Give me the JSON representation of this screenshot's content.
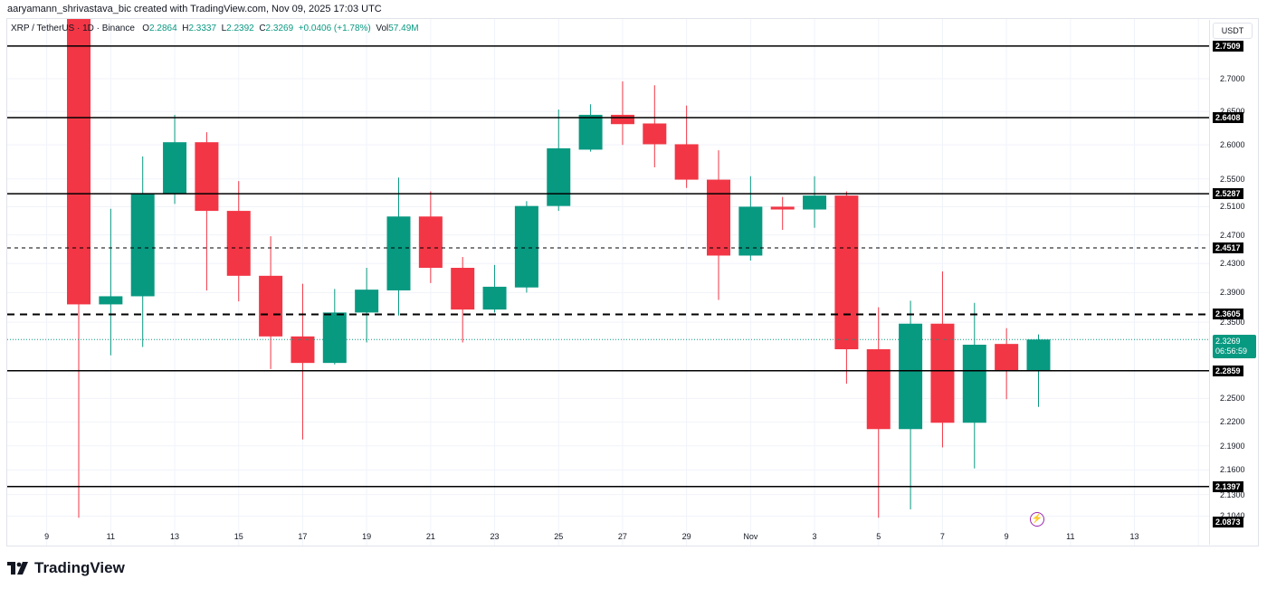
{
  "attribution": "aaryamann_shrivastava_bic created with TradingView.com, Nov 09, 2025 17:03 UTC",
  "legend": {
    "symbol": "XRP / TetherUS · 1D · Binance",
    "o_label": "O",
    "o": "2.2864",
    "h_label": "H",
    "h": "2.3337",
    "l_label": "L",
    "l": "2.2392",
    "c_label": "C",
    "c": "2.3269",
    "change": "+0.0406 (+1.78%)",
    "vol_label": "Vol",
    "vol": "57.49M"
  },
  "axis": {
    "unit": "USDT",
    "last_price": "2.3269",
    "countdown": "06:56:59"
  },
  "logo_text": "TradingView",
  "colors": {
    "up": "#089981",
    "down": "#f23645",
    "line": "#000000",
    "grid": "#f0f3fa"
  },
  "chart_data": {
    "type": "candlestick",
    "title": "XRP / TetherUS · 1D · Binance",
    "ylabel": "USDT",
    "scale": "log",
    "ylim": [
      2.09,
      2.77
    ],
    "y_ticks": [
      2.7,
      2.65,
      2.6,
      2.55,
      2.51,
      2.47,
      2.43,
      2.39,
      2.35,
      2.25,
      2.22,
      2.19,
      2.16,
      2.13,
      2.104
    ],
    "x_ticks": [
      "9",
      "11",
      "13",
      "15",
      "17",
      "19",
      "21",
      "23",
      "25",
      "27",
      "29",
      "Nov",
      "3",
      "5",
      "7",
      "9",
      "11",
      "13"
    ],
    "horizontal_lines": [
      {
        "price": 2.7509,
        "style": "solid"
      },
      {
        "price": 2.6408,
        "style": "solid"
      },
      {
        "price": 2.5287,
        "style": "solid"
      },
      {
        "price": 2.4517,
        "style": "dashed-fine"
      },
      {
        "price": 2.3605,
        "style": "dashed-bold"
      },
      {
        "price": 2.2859,
        "style": "solid"
      },
      {
        "price": 2.1397,
        "style": "solid"
      },
      {
        "price": 2.0873,
        "style": "label-only"
      }
    ],
    "candles": [
      {
        "date": "Oct 10",
        "o": 2.8,
        "h": 2.8,
        "l": 2.102,
        "c": 2.374
      },
      {
        "date": "Oct 11",
        "o": 2.374,
        "h": 2.507,
        "l": 2.306,
        "c": 2.385
      },
      {
        "date": "Oct 12",
        "o": 2.385,
        "h": 2.583,
        "l": 2.317,
        "c": 2.529
      },
      {
        "date": "Oct 13",
        "o": 2.529,
        "h": 2.645,
        "l": 2.514,
        "c": 2.604
      },
      {
        "date": "Oct 14",
        "o": 2.604,
        "h": 2.619,
        "l": 2.393,
        "c": 2.504
      },
      {
        "date": "Oct 15",
        "o": 2.504,
        "h": 2.547,
        "l": 2.378,
        "c": 2.413
      },
      {
        "date": "Oct 16",
        "o": 2.413,
        "h": 2.468,
        "l": 2.288,
        "c": 2.331
      },
      {
        "date": "Oct 17",
        "o": 2.331,
        "h": 2.402,
        "l": 2.198,
        "c": 2.296
      },
      {
        "date": "Oct 18",
        "o": 2.296,
        "h": 2.395,
        "l": 2.294,
        "c": 2.363
      },
      {
        "date": "Oct 19",
        "o": 2.363,
        "h": 2.424,
        "l": 2.323,
        "c": 2.394
      },
      {
        "date": "Oct 20",
        "o": 2.393,
        "h": 2.552,
        "l": 2.359,
        "c": 2.496
      },
      {
        "date": "Oct 21",
        "o": 2.496,
        "h": 2.532,
        "l": 2.403,
        "c": 2.424
      },
      {
        "date": "Oct 22",
        "o": 2.424,
        "h": 2.439,
        "l": 2.323,
        "c": 2.367
      },
      {
        "date": "Oct 23",
        "o": 2.367,
        "h": 2.428,
        "l": 2.363,
        "c": 2.398
      },
      {
        "date": "Oct 24",
        "o": 2.397,
        "h": 2.518,
        "l": 2.39,
        "c": 2.511
      },
      {
        "date": "Oct 25",
        "o": 2.511,
        "h": 2.653,
        "l": 2.504,
        "c": 2.595
      },
      {
        "date": "Oct 26",
        "o": 2.593,
        "h": 2.661,
        "l": 2.59,
        "c": 2.645
      },
      {
        "date": "Oct 27",
        "o": 2.645,
        "h": 2.696,
        "l": 2.6,
        "c": 2.631
      },
      {
        "date": "Oct 28",
        "o": 2.632,
        "h": 2.69,
        "l": 2.567,
        "c": 2.601
      },
      {
        "date": "Oct 29",
        "o": 2.601,
        "h": 2.659,
        "l": 2.537,
        "c": 2.549
      },
      {
        "date": "Oct 30",
        "o": 2.549,
        "h": 2.592,
        "l": 2.38,
        "c": 2.441
      },
      {
        "date": "Oct 31",
        "o": 2.441,
        "h": 2.554,
        "l": 2.434,
        "c": 2.51
      },
      {
        "date": "Nov 1",
        "o": 2.51,
        "h": 2.524,
        "l": 2.477,
        "c": 2.506
      },
      {
        "date": "Nov 2",
        "o": 2.506,
        "h": 2.554,
        "l": 2.48,
        "c": 2.526
      },
      {
        "date": "Nov 3",
        "o": 2.526,
        "h": 2.532,
        "l": 2.269,
        "c": 2.314
      },
      {
        "date": "Nov 4",
        "o": 2.314,
        "h": 2.37,
        "l": 2.102,
        "c": 2.211
      },
      {
        "date": "Nov 5",
        "o": 2.211,
        "h": 2.379,
        "l": 2.112,
        "c": 2.348
      },
      {
        "date": "Nov 6",
        "o": 2.348,
        "h": 2.419,
        "l": 2.188,
        "c": 2.219
      },
      {
        "date": "Nov 7",
        "o": 2.219,
        "h": 2.376,
        "l": 2.162,
        "c": 2.32
      },
      {
        "date": "Nov 8",
        "o": 2.321,
        "h": 2.342,
        "l": 2.249,
        "c": 2.2864
      },
      {
        "date": "Nov 9",
        "o": 2.2864,
        "h": 2.3337,
        "l": 2.2392,
        "c": 2.3269
      }
    ]
  }
}
